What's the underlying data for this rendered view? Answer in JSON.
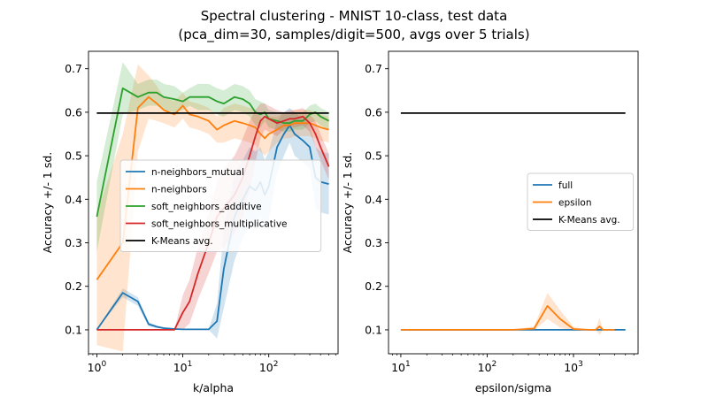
{
  "figure": {
    "title_line1": "Spectral clustering - MNIST 10-class, test data",
    "title_line2": "(pca_dim=30, samples/digit=500, avgs over 5 trials)"
  },
  "chart_data": [
    {
      "type": "line",
      "xscale": "log",
      "xlabel": "k/alpha",
      "ylabel": "Accuracy +/- 1 sd.",
      "xlim": [
        0.8,
        640
      ],
      "ylim": [
        0.045,
        0.74
      ],
      "xticks": [
        {
          "v": 1,
          "base": "10",
          "exp": "0"
        },
        {
          "v": 10,
          "base": "10",
          "exp": "1"
        },
        {
          "v": 100,
          "base": "10",
          "exp": "2"
        }
      ],
      "yticks": [
        0.1,
        0.2,
        0.3,
        0.4,
        0.5,
        0.6,
        0.7
      ],
      "ytick_labels": [
        "0.1",
        "0.2",
        "0.3",
        "0.4",
        "0.5",
        "0.6",
        "0.7"
      ],
      "legend": {
        "placement": "center-left"
      },
      "series": [
        {
          "name": "n-neighbors_mutual",
          "color": "#1f77b4",
          "x": [
            1,
            2,
            3,
            4,
            5,
            6,
            8,
            10,
            15,
            20,
            25,
            30,
            40,
            50,
            60,
            70,
            80,
            90,
            100,
            125,
            150,
            175,
            200,
            250,
            300,
            350,
            400,
            500
          ],
          "y": [
            0.1,
            0.185,
            0.165,
            0.113,
            0.107,
            0.104,
            0.102,
            0.101,
            0.101,
            0.101,
            0.12,
            0.24,
            0.36,
            0.4,
            0.43,
            0.42,
            0.44,
            0.41,
            0.43,
            0.52,
            0.55,
            0.57,
            0.55,
            0.535,
            0.52,
            0.45,
            0.44,
            0.435
          ],
          "sd": [
            0,
            0.01,
            0.01,
            0.005,
            0.003,
            0.002,
            0.002,
            0.001,
            0.001,
            0.001,
            0.04,
            0.09,
            0.1,
            0.09,
            0.09,
            0.09,
            0.08,
            0.08,
            0.08,
            0.06,
            0.05,
            0.04,
            0.05,
            0.05,
            0.05,
            0.07,
            0.07,
            0.07
          ]
        },
        {
          "name": "n-neighbors",
          "color": "#ff7f0e",
          "x": [
            1,
            2,
            3,
            4,
            5,
            6,
            8,
            10,
            12,
            15,
            20,
            25,
            30,
            40,
            50,
            60,
            70,
            80,
            90,
            100,
            125,
            150,
            175,
            200,
            250,
            300,
            350,
            400,
            500
          ],
          "y": [
            0.215,
            0.3,
            0.61,
            0.635,
            0.62,
            0.605,
            0.595,
            0.615,
            0.595,
            0.59,
            0.58,
            0.56,
            0.57,
            0.58,
            0.575,
            0.57,
            0.565,
            0.55,
            0.54,
            0.55,
            0.56,
            0.57,
            0.57,
            0.575,
            0.575,
            0.575,
            0.57,
            0.565,
            0.56
          ],
          "sd": [
            0.15,
            0.25,
            0.1,
            0.05,
            0.04,
            0.03,
            0.03,
            0.03,
            0.03,
            0.03,
            0.03,
            0.03,
            0.04,
            0.04,
            0.04,
            0.04,
            0.04,
            0.04,
            0.04,
            0.04,
            0.03,
            0.03,
            0.03,
            0.03,
            0.03,
            0.03,
            0.03,
            0.03,
            0.03
          ]
        },
        {
          "name": "soft_neighbors_additive",
          "color": "#2ca02c",
          "x": [
            1,
            2,
            3,
            4,
            5,
            6,
            8,
            10,
            12,
            15,
            20,
            25,
            30,
            40,
            50,
            60,
            70,
            80,
            90,
            100,
            125,
            150,
            175,
            200,
            250,
            300,
            350,
            400,
            500
          ],
          "y": [
            0.36,
            0.655,
            0.635,
            0.645,
            0.645,
            0.635,
            0.63,
            0.625,
            0.635,
            0.635,
            0.635,
            0.625,
            0.62,
            0.635,
            0.63,
            0.62,
            0.6,
            0.595,
            0.6,
            0.585,
            0.58,
            0.575,
            0.575,
            0.58,
            0.58,
            0.595,
            0.6,
            0.59,
            0.58
          ],
          "sd": [
            0.08,
            0.06,
            0.03,
            0.03,
            0.03,
            0.03,
            0.03,
            0.02,
            0.02,
            0.03,
            0.03,
            0.03,
            0.03,
            0.03,
            0.03,
            0.03,
            0.03,
            0.03,
            0.02,
            0.02,
            0.02,
            0.02,
            0.02,
            0.02,
            0.02,
            0.02,
            0.02,
            0.02,
            0.02
          ]
        },
        {
          "name": "soft_neighbors_multiplicative",
          "color": "#d62728",
          "x": [
            1,
            2,
            3,
            4,
            5,
            6,
            8,
            10,
            12,
            15,
            20,
            25,
            30,
            40,
            50,
            60,
            70,
            80,
            90,
            100,
            125,
            150,
            175,
            200,
            250,
            300,
            350,
            400,
            500
          ],
          "y": [
            0.1,
            0.1,
            0.1,
            0.1,
            0.1,
            0.1,
            0.1,
            0.14,
            0.165,
            0.23,
            0.3,
            0.36,
            0.38,
            0.41,
            0.45,
            0.5,
            0.545,
            0.58,
            0.59,
            0.585,
            0.575,
            0.58,
            0.585,
            0.585,
            0.59,
            0.575,
            0.55,
            0.52,
            0.475
          ],
          "sd": [
            0,
            0,
            0,
            0,
            0,
            0,
            0,
            0.04,
            0.05,
            0.06,
            0.07,
            0.08,
            0.09,
            0.09,
            0.09,
            0.08,
            0.06,
            0.04,
            0.03,
            0.03,
            0.03,
            0.02,
            0.02,
            0.02,
            0.02,
            0.02,
            0.03,
            0.03,
            0.03
          ]
        },
        {
          "name": "K-Means avg.",
          "color": "#000000",
          "x": [
            1,
            500
          ],
          "y": [
            0.598,
            0.598
          ],
          "sd": [
            0,
            0
          ]
        }
      ]
    },
    {
      "type": "line",
      "xscale": "log",
      "xlabel": "epsilon/sigma",
      "ylabel": "Accuracy +/- 1 sd.",
      "xlim": [
        7.2,
        5600
      ],
      "ylim": [
        0.045,
        0.74
      ],
      "xticks": [
        {
          "v": 10,
          "base": "10",
          "exp": "1"
        },
        {
          "v": 100,
          "base": "10",
          "exp": "2"
        },
        {
          "v": 1000,
          "base": "10",
          "exp": "3"
        }
      ],
      "yticks": [
        0.1,
        0.2,
        0.3,
        0.4,
        0.5,
        0.6,
        0.7
      ],
      "ytick_labels": [
        "0.1",
        "0.2",
        "0.3",
        "0.4",
        "0.5",
        "0.6",
        "0.7"
      ],
      "legend": {
        "placement": "center-right"
      },
      "series": [
        {
          "name": "full",
          "color": "#1f77b4",
          "x": [
            10,
            4000
          ],
          "y": [
            0.1,
            0.1
          ],
          "sd": [
            0,
            0
          ]
        },
        {
          "name": "epsilon",
          "color": "#ff7f0e",
          "x": [
            10,
            50,
            100,
            200,
            350,
            500,
            700,
            1000,
            1500,
            1800,
            2000,
            2200,
            3000
          ],
          "y": [
            0.1,
            0.1,
            0.1,
            0.1,
            0.103,
            0.155,
            0.125,
            0.102,
            0.1,
            0.1,
            0.108,
            0.1,
            0.1
          ],
          "sd": [
            0,
            0,
            0,
            0,
            0.005,
            0.03,
            0.02,
            0.005,
            0,
            0,
            0.02,
            0,
            0
          ]
        },
        {
          "name": "K-Means avg.",
          "color": "#000000",
          "x": [
            10,
            4000
          ],
          "y": [
            0.598,
            0.598
          ],
          "sd": [
            0,
            0
          ]
        }
      ]
    }
  ]
}
